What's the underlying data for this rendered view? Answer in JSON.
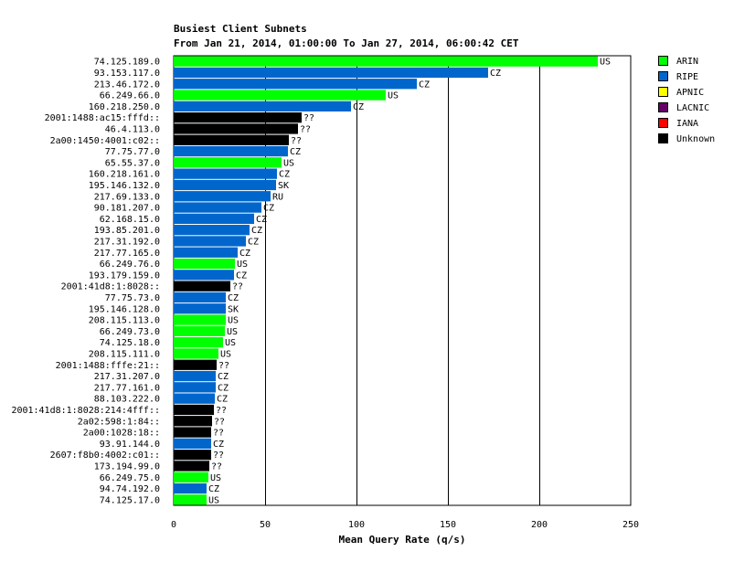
{
  "chart_data": {
    "type": "bar",
    "orientation": "horizontal",
    "title": "Busiest Client Subnets",
    "subtitle": "From Jan 21, 2014, 01:00:00 To Jan 27, 2014, 06:00:42 CET",
    "xlabel": "Mean Query Rate (q/s)",
    "ylabel": "",
    "xlim": [
      0,
      250
    ],
    "xticks": [
      0,
      50,
      100,
      150,
      200,
      250
    ],
    "grid": true,
    "legend_position": "right",
    "legend": [
      {
        "name": "ARIN",
        "color": "#00ff00"
      },
      {
        "name": "RIPE",
        "color": "#0066cc"
      },
      {
        "name": "APNIC",
        "color": "#ffff00"
      },
      {
        "name": "LACNIC",
        "color": "#660066"
      },
      {
        "name": "IANA",
        "color": "#ff0000"
      },
      {
        "name": "Unknown",
        "color": "#000000"
      }
    ],
    "bars": [
      {
        "label": "74.125.189.0",
        "value": 232,
        "tag": "US",
        "registry": "ARIN"
      },
      {
        "label": "93.153.117.0",
        "value": 172,
        "tag": "CZ",
        "registry": "RIPE"
      },
      {
        "label": "213.46.172.0",
        "value": 133,
        "tag": "CZ",
        "registry": "RIPE"
      },
      {
        "label": "66.249.66.0",
        "value": 116,
        "tag": "US",
        "registry": "ARIN"
      },
      {
        "label": "160.218.250.0",
        "value": 97,
        "tag": "CZ",
        "registry": "RIPE"
      },
      {
        "label": "2001:1488:ac15:fffd::",
        "value": 70,
        "tag": "??",
        "registry": "Unknown"
      },
      {
        "label": "46.4.113.0",
        "value": 68,
        "tag": "??",
        "registry": "Unknown"
      },
      {
        "label": "2a00:1450:4001:c02::",
        "value": 63,
        "tag": "??",
        "registry": "Unknown"
      },
      {
        "label": "77.75.77.0",
        "value": 62.5,
        "tag": "CZ",
        "registry": "RIPE"
      },
      {
        "label": "65.55.37.0",
        "value": 59,
        "tag": "US",
        "registry": "ARIN"
      },
      {
        "label": "160.218.161.0",
        "value": 56.5,
        "tag": "CZ",
        "registry": "RIPE"
      },
      {
        "label": "195.146.132.0",
        "value": 56,
        "tag": "SK",
        "registry": "RIPE"
      },
      {
        "label": "217.69.133.0",
        "value": 53,
        "tag": "RU",
        "registry": "RIPE"
      },
      {
        "label": "90.181.207.0",
        "value": 48,
        "tag": "CZ",
        "registry": "RIPE"
      },
      {
        "label": "62.168.15.0",
        "value": 44,
        "tag": "CZ",
        "registry": "RIPE"
      },
      {
        "label": "193.85.201.0",
        "value": 41.5,
        "tag": "CZ",
        "registry": "RIPE"
      },
      {
        "label": "217.31.192.0",
        "value": 39.5,
        "tag": "CZ",
        "registry": "RIPE"
      },
      {
        "label": "217.77.165.0",
        "value": 35,
        "tag": "CZ",
        "registry": "RIPE"
      },
      {
        "label": "66.249.76.0",
        "value": 33.5,
        "tag": "US",
        "registry": "ARIN"
      },
      {
        "label": "193.179.159.0",
        "value": 33,
        "tag": "CZ",
        "registry": "RIPE"
      },
      {
        "label": "2001:41d8:1:8028::",
        "value": 31,
        "tag": "??",
        "registry": "Unknown"
      },
      {
        "label": "77.75.73.0",
        "value": 28.5,
        "tag": "CZ",
        "registry": "RIPE"
      },
      {
        "label": "195.146.128.0",
        "value": 28.5,
        "tag": "SK",
        "registry": "RIPE"
      },
      {
        "label": "208.115.113.0",
        "value": 28.5,
        "tag": "US",
        "registry": "ARIN"
      },
      {
        "label": "66.249.73.0",
        "value": 28,
        "tag": "US",
        "registry": "ARIN"
      },
      {
        "label": "74.125.18.0",
        "value": 27,
        "tag": "US",
        "registry": "ARIN"
      },
      {
        "label": "208.115.111.0",
        "value": 24.5,
        "tag": "US",
        "registry": "ARIN"
      },
      {
        "label": "2001:1488:fffe:21::",
        "value": 23.5,
        "tag": "??",
        "registry": "Unknown"
      },
      {
        "label": "217.31.207.0",
        "value": 23,
        "tag": "CZ",
        "registry": "RIPE"
      },
      {
        "label": "217.77.161.0",
        "value": 23,
        "tag": "CZ",
        "registry": "RIPE"
      },
      {
        "label": "88.103.222.0",
        "value": 22.5,
        "tag": "CZ",
        "registry": "RIPE"
      },
      {
        "label": "2001:41d8:1:8028:214:4fff::",
        "value": 22,
        "tag": "??",
        "registry": "Unknown"
      },
      {
        "label": "2a02:598:1:84::",
        "value": 21,
        "tag": "??",
        "registry": "Unknown"
      },
      {
        "label": "2a00:1028:18::",
        "value": 20.5,
        "tag": "??",
        "registry": "Unknown"
      },
      {
        "label": "93.91.144.0",
        "value": 20.5,
        "tag": "CZ",
        "registry": "RIPE"
      },
      {
        "label": "2607:f8b0:4002:c01::",
        "value": 20.5,
        "tag": "??",
        "registry": "Unknown"
      },
      {
        "label": "173.194.99.0",
        "value": 19.5,
        "tag": "??",
        "registry": "Unknown"
      },
      {
        "label": "66.249.75.0",
        "value": 19,
        "tag": "US",
        "registry": "ARIN"
      },
      {
        "label": "94.74.192.0",
        "value": 18,
        "tag": "CZ",
        "registry": "RIPE"
      },
      {
        "label": "74.125.17.0",
        "value": 18,
        "tag": "US",
        "registry": "ARIN"
      }
    ]
  }
}
